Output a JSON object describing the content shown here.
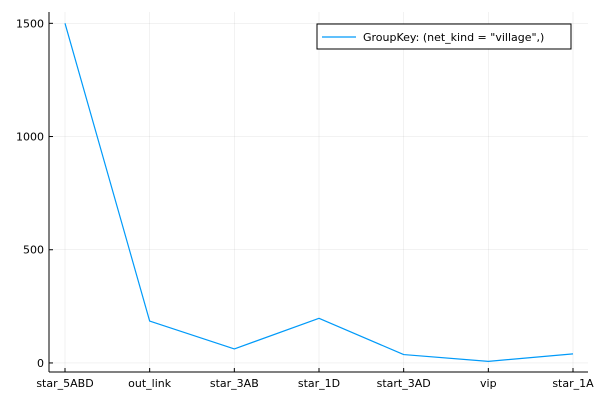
{
  "chart_data": {
    "type": "line",
    "categories": [
      "star_5ABD",
      "out_link",
      "star_3AB",
      "star_1D",
      "start_3AD",
      "vip",
      "star_1A"
    ],
    "series": [
      {
        "name": "GroupKey: (net_kind = \"village\",)",
        "values": [
          1500,
          185,
          62,
          197,
          37,
          7,
          40
        ],
        "color": "#009af9"
      }
    ],
    "ylim": [
      -40,
      1550
    ],
    "yticks": [
      0,
      500,
      1000,
      1500
    ],
    "grid": true,
    "legend_position": "top-right",
    "title": "",
    "xlabel": "",
    "ylabel": ""
  }
}
